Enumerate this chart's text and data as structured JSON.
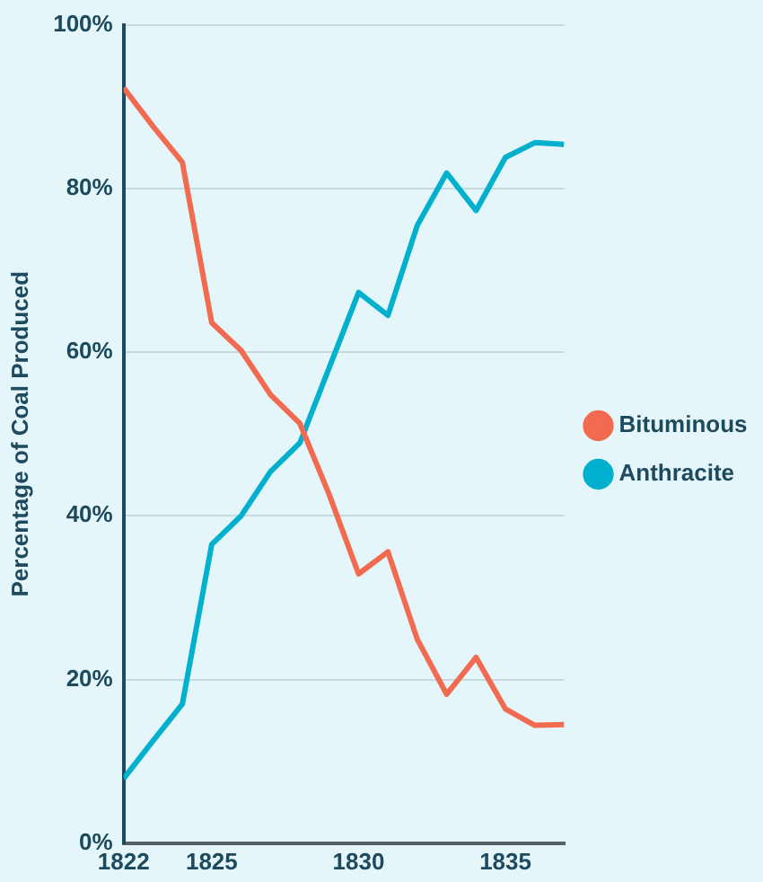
{
  "chart_data": {
    "type": "line",
    "ylabel": "Percentage of Coal Produced",
    "x": [
      1822,
      1823,
      1824,
      1825,
      1826,
      1827,
      1828,
      1829,
      1830,
      1831,
      1832,
      1833,
      1834,
      1835,
      1836,
      1837
    ],
    "series": [
      {
        "name": "Bituminous",
        "color": "#f26a4f",
        "values": [
          92.3,
          87.6,
          83.2,
          63.6,
          60.2,
          54.8,
          51.3,
          42.6,
          32.9,
          35.6,
          24.9,
          18.2,
          22.7,
          16.4,
          14.4,
          14.5
        ]
      },
      {
        "name": "Anthracite",
        "color": "#00b0cc",
        "values": [
          7.9,
          12.5,
          17.0,
          36.5,
          40.0,
          45.4,
          48.9,
          58.1,
          67.3,
          64.5,
          75.5,
          81.9,
          77.3,
          83.8,
          85.6,
          85.4
        ]
      }
    ],
    "xlim": [
      1822,
      1837
    ],
    "xticks": [
      1822,
      1825,
      1830,
      1835
    ],
    "ylim": [
      0,
      100
    ],
    "yticks": [
      {
        "value": 0,
        "label": "0%"
      },
      {
        "value": 20,
        "label": "20%"
      },
      {
        "value": 40,
        "label": "40%"
      },
      {
        "value": 60,
        "label": "60%"
      },
      {
        "value": 80,
        "label": "80%"
      },
      {
        "value": 100,
        "label": "100%"
      }
    ],
    "grid": "y",
    "legend": "right",
    "marker": "none",
    "line_style": "solid"
  }
}
